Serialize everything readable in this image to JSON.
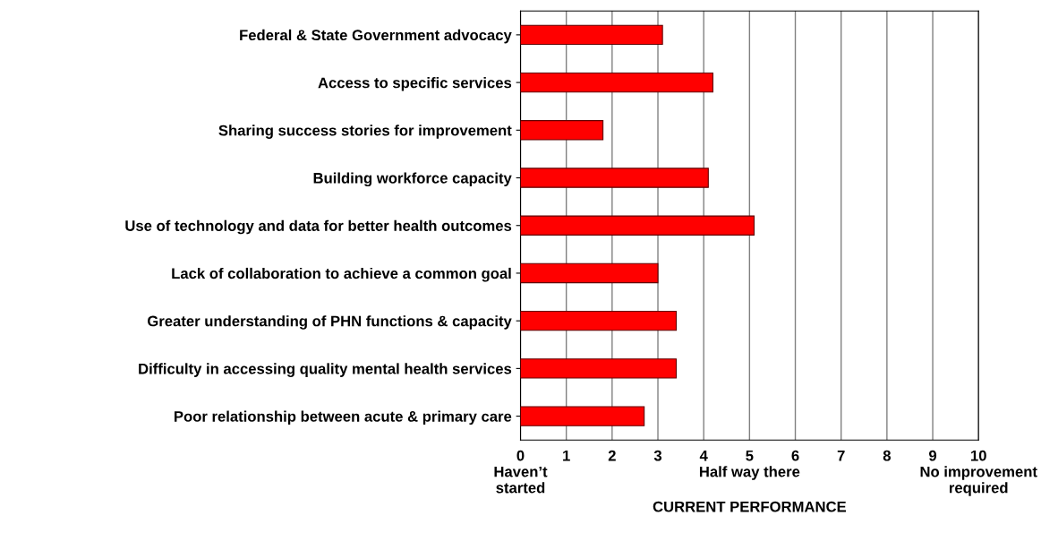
{
  "chart_data": {
    "type": "bar",
    "orientation": "horizontal",
    "xlabel": "CURRENT PERFORMANCE",
    "categories": [
      "Federal & State Government advocacy",
      "Access to specific services",
      "Sharing success stories for improvement",
      "Building workforce capacity",
      "Use of technology and data for better health outcomes",
      "Lack of collaboration to achieve a common goal",
      "Greater understanding of PHN functions & capacity",
      "Difficulty in accessing quality mental health services",
      "Poor relationship between acute & primary care"
    ],
    "values": [
      3.1,
      4.2,
      1.8,
      4.1,
      5.1,
      3.0,
      3.4,
      3.4,
      2.7
    ],
    "color": "#ff0000",
    "xlim": [
      0,
      10
    ],
    "xticks": [
      {
        "value": 0,
        "label": "0\nHaven’t\nstarted"
      },
      1,
      2,
      3,
      4,
      {
        "value": 5,
        "label": "5\nHalf way there"
      },
      6,
      7,
      8,
      9,
      {
        "value": 10,
        "label": "10\nNo improvement\nrequired"
      }
    ],
    "grid": "x"
  }
}
